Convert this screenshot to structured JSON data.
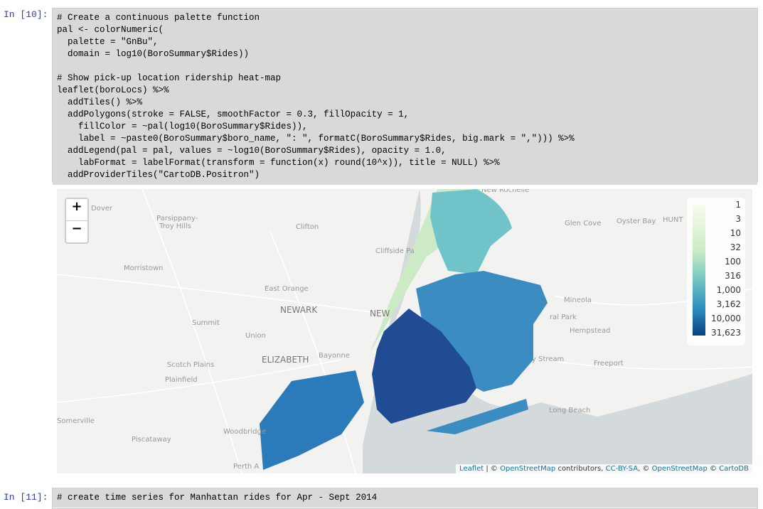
{
  "cells": [
    {
      "prompt": "In [10]:",
      "code": [
        "# Create a continuous palette function",
        "pal <- colorNumeric(",
        "  palette = \"GnBu\",",
        "  domain = log10(BoroSummary$Rides))",
        "",
        "# Show pick-up location ridership heat-map",
        "leaflet(boroLocs) %>%",
        "  addTiles() %>%",
        "  addPolygons(stroke = FALSE, smoothFactor = 0.3, fillOpacity = 1,",
        "    fillColor = ~pal(log10(BoroSummary$Rides)),",
        "    label = ~paste0(BoroSummary$boro_name, \": \", formatC(BoroSummary$Rides, big.mark = \",\"))) %>%",
        "  addLegend(pal = pal, values = ~log10(BoroSummary$Rides), opacity = 1.0,",
        "    labFormat = labelFormat(transform = function(x) round(10^x)), title = NULL) %>%",
        "  addProviderTiles(\"CartoDB.Positron\")"
      ]
    },
    {
      "prompt": "In [11]:",
      "code": [
        "# create time series for Manhattan rides for Apr - Sept 2014"
      ]
    }
  ],
  "map": {
    "zoom": [
      "+",
      "−"
    ],
    "places": [
      "New Rochelle",
      "Dover",
      "Parsippany-",
      "Troy Hills",
      "Clifton",
      "Cliffside Pa",
      "Morristown",
      "East Orange",
      "NEWARK",
      "NEW",
      "Summit",
      "Union",
      "ELIZABETH",
      "Bayonne",
      "Scotch Plains",
      "Plainfield",
      "Somerville",
      "Woodbridge",
      "Piscataway",
      "Perth A",
      "Glen Cove",
      "Oyster Bay",
      "HUNT",
      "Mineola",
      "ral Park",
      "Hempstead",
      "y Stream",
      "Freeport",
      "Long Beach"
    ],
    "legend": [
      "1",
      "3",
      "10",
      "32",
      "100",
      "316",
      "1,000",
      "3,162",
      "10,000",
      "31,623"
    ],
    "attribution": [
      "Leaflet",
      " | © ",
      "OpenStreetMap",
      " contributors, ",
      "CC-BY-SA",
      ", © ",
      "OpenStreetMap",
      " © ",
      "CartoDB"
    ]
  }
}
